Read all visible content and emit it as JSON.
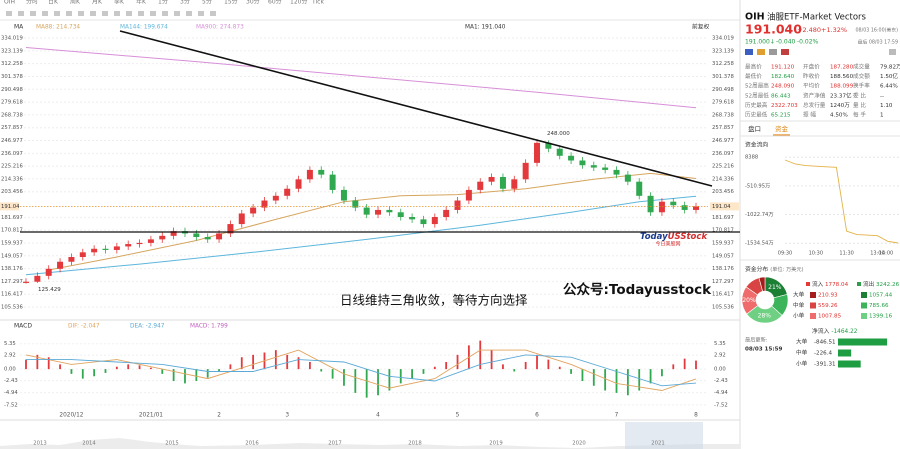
{
  "toolbar": [
    "OIH",
    "分时",
    "日K",
    "周K",
    "月K",
    "季K",
    "年K",
    "1分",
    "3分",
    "5分",
    "15分",
    "30分",
    "60分",
    "120分",
    "Tick"
  ],
  "chart_data": [
    {
      "type": "candlestick",
      "legend_title": "MA",
      "adjust": "前复权",
      "last_label": "MA1: 191.040",
      "max_label": "248.000",
      "up_color": "#e3393c",
      "down_color": "#2fa84f",
      "categories": [
        null,
        null,
        null,
        null,
        "2020/12",
        null,
        null,
        null,
        null,
        null,
        null,
        "2021/01",
        null,
        null,
        null,
        null,
        null,
        "2",
        null,
        null,
        null,
        null,
        null,
        "3",
        null,
        null,
        null,
        null,
        null,
        null,
        null,
        "4",
        null,
        null,
        null,
        null,
        null,
        null,
        "5",
        null,
        null,
        null,
        null,
        null,
        null,
        "6",
        null,
        null,
        null,
        null,
        null,
        null,
        "7",
        null,
        null,
        null,
        null,
        null,
        null,
        "8"
      ],
      "open": [
        126,
        127,
        132,
        138,
        144,
        148,
        152,
        155,
        154,
        157,
        159,
        160,
        163,
        166,
        170,
        168,
        165,
        163,
        168,
        176,
        185,
        190,
        196,
        200,
        206,
        214,
        222,
        218,
        205,
        196,
        190,
        184,
        188,
        186,
        182,
        180,
        176,
        182,
        188,
        196,
        205,
        212,
        216,
        206,
        214,
        228,
        245,
        240,
        234,
        230,
        226,
        224,
        222,
        218,
        212,
        200,
        186,
        195,
        192,
        188
      ],
      "high": [
        130,
        135,
        141,
        147,
        151,
        155,
        158,
        158,
        160,
        162,
        163,
        166,
        169,
        173,
        173,
        171,
        168,
        171,
        179,
        188,
        193,
        199,
        203,
        209,
        217,
        225,
        225,
        221,
        208,
        199,
        193,
        191,
        191,
        189,
        185,
        183,
        185,
        191,
        199,
        208,
        215,
        219,
        219,
        217,
        231,
        248,
        247,
        243,
        237,
        233,
        229,
        227,
        225,
        221,
        215,
        203,
        198,
        198,
        195,
        194
      ],
      "low": [
        125.429,
        126,
        129,
        135,
        141,
        145,
        149,
        151,
        151,
        154,
        156,
        157,
        160,
        163,
        165,
        162,
        160,
        160,
        165,
        173,
        182,
        187,
        193,
        197,
        203,
        211,
        215,
        202,
        193,
        187,
        181,
        181,
        183,
        179,
        177,
        173,
        173,
        179,
        185,
        193,
        202,
        209,
        203,
        203,
        211,
        225,
        237,
        231,
        227,
        223,
        221,
        219,
        215,
        209,
        197,
        183,
        183,
        189,
        185,
        185
      ],
      "close": [
        127,
        132,
        138,
        144,
        148,
        152,
        155,
        154,
        157,
        159,
        160,
        163,
        166,
        170,
        168,
        165,
        163,
        168,
        176,
        185,
        190,
        196,
        200,
        206,
        214,
        222,
        218,
        205,
        196,
        190,
        184,
        188,
        186,
        182,
        180,
        176,
        182,
        188,
        196,
        205,
        212,
        216,
        206,
        214,
        228,
        245,
        240,
        234,
        230,
        226,
        224,
        222,
        218,
        212,
        200,
        186,
        195,
        192,
        188,
        191.04
      ],
      "overlays": [
        {
          "name": "MA88",
          "label": "MA88: 214.734",
          "color": "#d6a55e",
          "x": [
            2,
            8,
            15,
            22,
            28,
            33,
            38,
            44,
            50,
            55,
            59
          ],
          "values": [
            137,
            148,
            162,
            180,
            195,
            200,
            201,
            206,
            214,
            219,
            214.734
          ]
        },
        {
          "name": "MA144",
          "label": "MA144: 199.674",
          "color": "#5db6dc",
          "x": [
            0,
            10,
            20,
            30,
            40,
            48,
            54,
            59
          ],
          "values": [
            133,
            142,
            152,
            163,
            175,
            186,
            195,
            199.674
          ]
        },
        {
          "name": "MA900",
          "label": "MA900: 274.873",
          "color": "#d78fd8",
          "x": [
            0,
            15,
            30,
            45,
            59
          ],
          "values": [
            326,
            314,
            301,
            288,
            274.873
          ]
        }
      ],
      "ylim": [
        96.2,
        338.3
      ],
      "yticks": [
        334.019,
        323.139,
        312.258,
        301.378,
        290.498,
        279.618,
        268.738,
        257.857,
        246.977,
        236.097,
        225.216,
        214.336,
        203.456,
        181.697,
        170.817,
        159.937,
        149.057,
        138.176,
        127.297,
        116.417,
        105.536
      ],
      "grid": true
    },
    {
      "type": "macd",
      "legend_title": "MACD",
      "hist_label": "MACD: 1.799",
      "up_color": "#e3393c",
      "down_color": "#2fa84f",
      "values": [
        2,
        3,
        2.5,
        1,
        -1,
        -2,
        -1.5,
        -0.8,
        0.5,
        1,
        0.8,
        0.3,
        -1,
        -2.5,
        -3,
        -2.5,
        -1.8,
        -0.5,
        1,
        2.5,
        3,
        3.5,
        4,
        3,
        2.5,
        1.5,
        -0.5,
        -2,
        -3.5,
        -5,
        -6,
        -5.5,
        -4.5,
        -3,
        -2,
        -1,
        0.5,
        1.5,
        3,
        5,
        6,
        4,
        1,
        -0.5,
        1.5,
        3,
        2,
        0.5,
        -1,
        -2.5,
        -3.5,
        -4.5,
        -5,
        -5.5,
        -4.5,
        -3,
        -1.5,
        1,
        2.2,
        1.799
      ],
      "series": [
        {
          "name": "DIF",
          "label": "DIF: -2.047",
          "color": "#e0a35e",
          "x": [
            0,
            4,
            8,
            12,
            16,
            20,
            24,
            28,
            32,
            36,
            40,
            44,
            48,
            52,
            56,
            59
          ],
          "values": [
            3,
            1,
            2,
            0,
            -2,
            1,
            4,
            -1,
            -4,
            -2,
            4,
            4,
            1,
            -3,
            -4.5,
            -2.047
          ]
        },
        {
          "name": "DEA",
          "label": "DEA: -2.947",
          "color": "#5aa9d6",
          "x": [
            0,
            4,
            8,
            12,
            16,
            20,
            24,
            28,
            32,
            36,
            40,
            44,
            48,
            52,
            56,
            59
          ],
          "values": [
            2,
            2,
            1.5,
            1,
            -0.5,
            -0.5,
            2,
            1.5,
            -1.5,
            -2.5,
            1,
            3,
            2.5,
            -0.5,
            -3.5,
            -2.947
          ]
        }
      ],
      "ylim": [
        -8.6,
        7.6
      ],
      "yticks": [
        5.35,
        2.92,
        {
          "value": 0,
          "label": "0.00"
        },
        -2.43,
        -4.94,
        -7.52
      ]
    },
    {
      "type": "line",
      "title": "资金流向",
      "color": "#e2b247",
      "categories": [
        "09:30",
        null,
        null,
        "10:30",
        null,
        null,
        "11:30",
        null,
        null,
        "13:00",
        null,
        "14:00"
      ],
      "values": [
        -50,
        -120,
        -150,
        -160,
        -170,
        -180,
        -1320,
        -1380,
        -1390,
        -1400,
        -1500,
        -1530
      ],
      "ylim": [
        -1620,
        40
      ],
      "yticks": [
        {
          "value": 0.8388,
          "label": "8388"
        },
        {
          "value": -510.95,
          "label": "-510.95万"
        },
        {
          "value": -1022.74,
          "label": "-1022.74万"
        },
        {
          "value": -1534.54,
          "label": "-1534.54万"
        }
      ]
    }
  ],
  "overlay_texts": {
    "logo": [
      "Today",
      "USStock"
    ],
    "logo_sub": "今日美股网",
    "account": "公众号:Todayusstock",
    "comment": "日线维持三角收敛，等待方向选择"
  },
  "timeline": {
    "years": [
      "2013",
      "2014",
      "2015",
      "2016",
      "2017",
      "2018",
      "2019",
      "2020",
      "2021"
    ]
  },
  "quote": {
    "symbol": "OIH",
    "name": "油服ETF-Market Vectors",
    "price": "191.040",
    "change": "+2.480",
    "change_pct": "+1.32%",
    "time": "08/03 16:00(美东)",
    "after_price": "191.000↓",
    "after_change": "-0.040",
    "after_pct": "-0.02%",
    "after_time": "盘后 08/03 17:59"
  },
  "stats": [
    [
      {
        "label": "最高价",
        "value": "191.120"
      },
      {
        "label": "开盘价",
        "value": "187.280"
      },
      {
        "label": "成交量",
        "value": "79.82万"
      }
    ],
    [
      {
        "label": "最低价",
        "value": "182.640"
      },
      {
        "label": "昨收价",
        "value": "188.560"
      },
      {
        "label": "成交额",
        "value": "1.50亿"
      }
    ],
    [
      {
        "label": "52周最高",
        "value": "248.090"
      },
      {
        "label": "平均价",
        "value": "188.099"
      },
      {
        "label": "换手率",
        "value": "6.44%"
      }
    ],
    [
      {
        "label": "52周最低",
        "value": "86.443"
      },
      {
        "label": "资产净值",
        "value": "23.37亿"
      },
      {
        "label": "委 比",
        "value": "--"
      }
    ],
    [
      {
        "label": "历史最高",
        "value": "2322.703"
      },
      {
        "label": "总发行量",
        "value": "1240万"
      },
      {
        "label": "量 比",
        "value": "1.10"
      }
    ],
    [
      {
        "label": "历史最低",
        "value": "65.215"
      },
      {
        "label": "振 幅",
        "value": "4.50%"
      },
      {
        "label": "每 手",
        "value": "1"
      }
    ]
  ],
  "tabs": [
    "盘口",
    "资金"
  ],
  "distribution": {
    "title": "资金分布",
    "unit": "(单位: 万美元)",
    "inflow_label": "流入",
    "inflow_total": 1778.04,
    "inflow_color": "#e53935",
    "outflow_label": "流出",
    "outflow_total": 3242.26,
    "outflow_color": "#2e9e4a",
    "rows": [
      {
        "name": "大单",
        "in": 210.93,
        "out": 1057.44,
        "in_color": "#a61b1b",
        "out_color": "#1b7f34",
        "out_pct": "21%"
      },
      {
        "name": "中单",
        "in": 559.26,
        "out": 785.66,
        "in_color": "#d84343",
        "out_color": "#3cb45a"
      },
      {
        "name": "小单",
        "in": 1007.85,
        "out": 1399.16,
        "in_color": "#f06b6b",
        "out_color": "#6fcf82",
        "in_pct": "20%",
        "out_pct": "28%"
      }
    ]
  },
  "net_flow": {
    "title": "净流入",
    "total": -1464.22,
    "updated_label": "最后更新:",
    "updated": "08/03 15:59",
    "color": "#1f9d43",
    "rows": [
      {
        "name": "大单",
        "value": -846.51
      },
      {
        "name": "中单",
        "value": -226.4
      },
      {
        "name": "小单",
        "value": -391.31
      }
    ]
  }
}
